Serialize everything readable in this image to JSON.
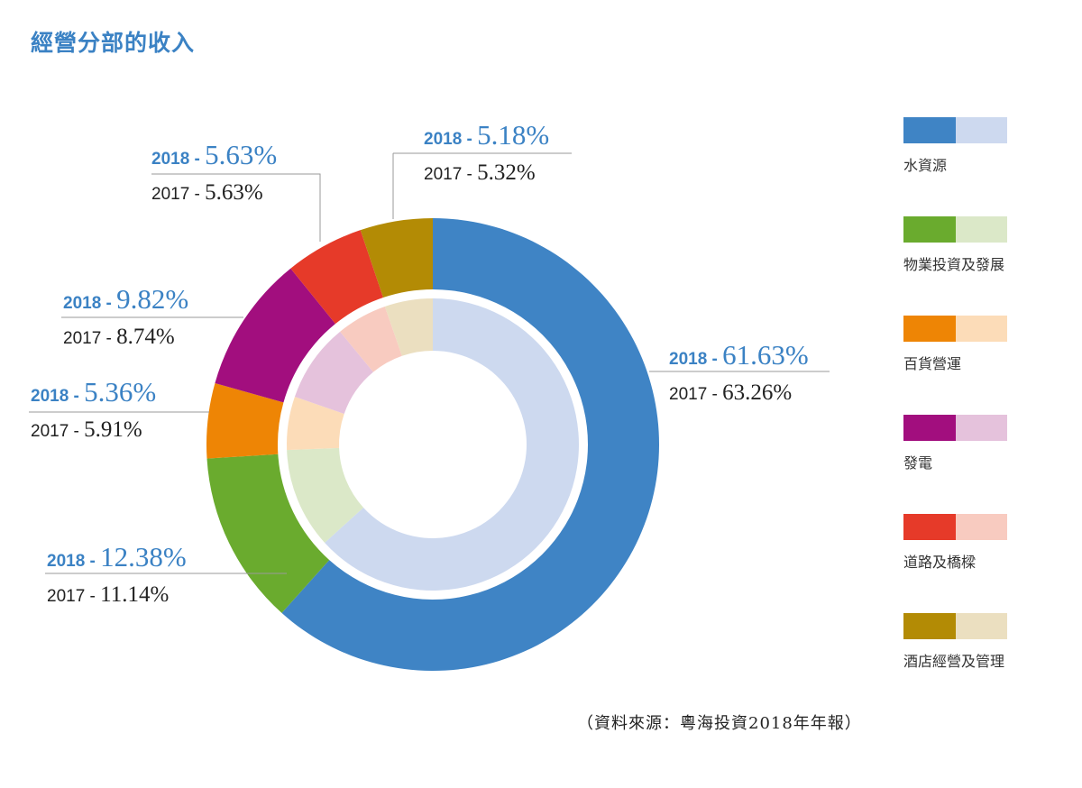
{
  "title": "經營分部的收入",
  "source": "（資料來源：粵海投資2018年年報）",
  "chart_data": {
    "type": "pie",
    "subtype": "double-donut",
    "start_angle_deg": 0,
    "direction": "clockwise",
    "rings": [
      "2018",
      "2017"
    ],
    "categories": [
      "水資源",
      "物業投資及發展",
      "百貨營運",
      "發電",
      "道路及橋樑",
      "酒店經營及管理"
    ],
    "series": [
      {
        "name": "2018",
        "ring": "outer",
        "values": [
          61.63,
          12.38,
          5.36,
          9.82,
          5.63,
          5.18
        ]
      },
      {
        "name": "2017",
        "ring": "inner",
        "values": [
          63.26,
          11.14,
          5.91,
          8.74,
          5.63,
          5.32
        ]
      }
    ],
    "colors_dark": [
      "#3f84c5",
      "#6aab2e",
      "#ee8505",
      "#a20e7e",
      "#e63a29",
      "#b38b05"
    ],
    "colors_light": [
      "#cdd9ef",
      "#dbe8c8",
      "#fcdcb8",
      "#e5c2dc",
      "#f8cbc0",
      "#ebdfc0"
    ],
    "labels": [
      {
        "y2018_prefix": "2018 - ",
        "y2018_value": "61.63%",
        "y2017_prefix": "2017 - ",
        "y2017_value": "63.26%"
      },
      {
        "y2018_prefix": "2018 - ",
        "y2018_value": "12.38%",
        "y2017_prefix": "2017 - ",
        "y2017_value": "11.14%"
      },
      {
        "y2018_prefix": "2018 - ",
        "y2018_value": "5.36%",
        "y2017_prefix": "2017 - ",
        "y2017_value": "5.91%"
      },
      {
        "y2018_prefix": "2018 - ",
        "y2018_value": "9.82%",
        "y2017_prefix": "2017 - ",
        "y2017_value": "8.74%"
      },
      {
        "y2018_prefix": "2018 - ",
        "y2018_value": "5.63%",
        "y2017_prefix": "2017 - ",
        "y2017_value": "5.63%"
      },
      {
        "y2018_prefix": "2018 - ",
        "y2018_value": "5.18%",
        "y2017_prefix": "2017 - ",
        "y2017_value": "5.32%"
      }
    ],
    "label_colors": {
      "y2018": "#3b82c4",
      "y2017": "#222222"
    }
  }
}
